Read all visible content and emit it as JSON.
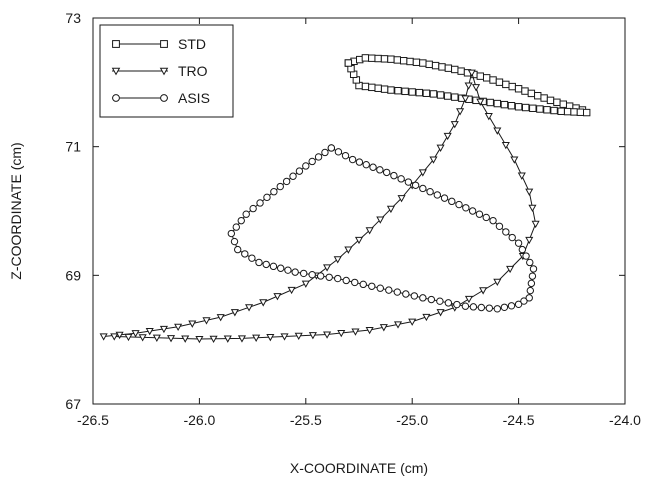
{
  "chart_data": {
    "type": "line",
    "title": "",
    "xlabel": "X-COORDINATE (cm)",
    "ylabel": "Z-COORDINATE (cm)",
    "xlim": [
      -26.5,
      -24.0
    ],
    "ylim": [
      67,
      73
    ],
    "x_ticks": [
      -26.5,
      -26.0,
      -25.5,
      -25.0,
      -24.5,
      -24.0
    ],
    "x_tick_labels": [
      "-26.5",
      "-26.0",
      "-25.5",
      "-25.0",
      "-24.5",
      "-24.0"
    ],
    "y_ticks": [
      67,
      69,
      71,
      73
    ],
    "y_tick_labels": [
      "67",
      "69",
      "71",
      "73"
    ],
    "grid": false,
    "legend_position": "top-left",
    "series": [
      {
        "name": "STD",
        "marker": "square",
        "x": [
          -25.3,
          -25.22,
          -25.1,
          -24.95,
          -24.8,
          -24.65,
          -24.5,
          -24.35,
          -24.2,
          -24.18,
          -24.3,
          -24.5,
          -24.7,
          -24.9,
          -25.1,
          -25.25,
          -25.3
        ],
        "y": [
          72.3,
          72.38,
          72.36,
          72.3,
          72.2,
          72.07,
          71.9,
          71.72,
          71.57,
          71.53,
          71.55,
          71.62,
          71.72,
          71.82,
          71.88,
          71.95,
          72.3
        ]
      },
      {
        "name": "TRO",
        "marker": "triangle-down",
        "x": [
          -26.45,
          -26.3,
          -26.1,
          -25.9,
          -25.7,
          -25.5,
          -25.35,
          -25.2,
          -25.05,
          -24.9,
          -24.8,
          -24.75,
          -24.72,
          -24.68,
          -24.6,
          -24.52,
          -24.45,
          -24.42,
          -24.48,
          -24.6,
          -24.8,
          -25.0,
          -25.2,
          -25.4,
          -25.6,
          -25.8,
          -26.0,
          -26.2,
          -26.4
        ],
        "y": [
          68.05,
          68.1,
          68.2,
          68.35,
          68.58,
          68.87,
          69.25,
          69.7,
          70.2,
          70.8,
          71.35,
          71.75,
          72.15,
          71.7,
          71.25,
          70.8,
          70.3,
          69.8,
          69.3,
          68.9,
          68.5,
          68.28,
          68.15,
          68.08,
          68.05,
          68.02,
          68.01,
          68.03,
          68.05
        ]
      },
      {
        "name": "ASIS",
        "marker": "circle",
        "x": [
          -25.38,
          -25.5,
          -25.65,
          -25.78,
          -25.85,
          -25.82,
          -25.72,
          -25.55,
          -25.35,
          -25.15,
          -24.95,
          -24.75,
          -24.6,
          -24.5,
          -24.45,
          -24.43,
          -24.5,
          -24.62,
          -24.78,
          -24.95,
          -25.12,
          -25.28,
          -25.38
        ],
        "y": [
          70.98,
          70.7,
          70.3,
          69.95,
          69.65,
          69.4,
          69.2,
          69.05,
          68.95,
          68.8,
          68.65,
          68.52,
          68.48,
          68.55,
          68.65,
          69.1,
          69.5,
          69.85,
          70.1,
          70.35,
          70.6,
          70.8,
          70.98
        ]
      }
    ]
  }
}
